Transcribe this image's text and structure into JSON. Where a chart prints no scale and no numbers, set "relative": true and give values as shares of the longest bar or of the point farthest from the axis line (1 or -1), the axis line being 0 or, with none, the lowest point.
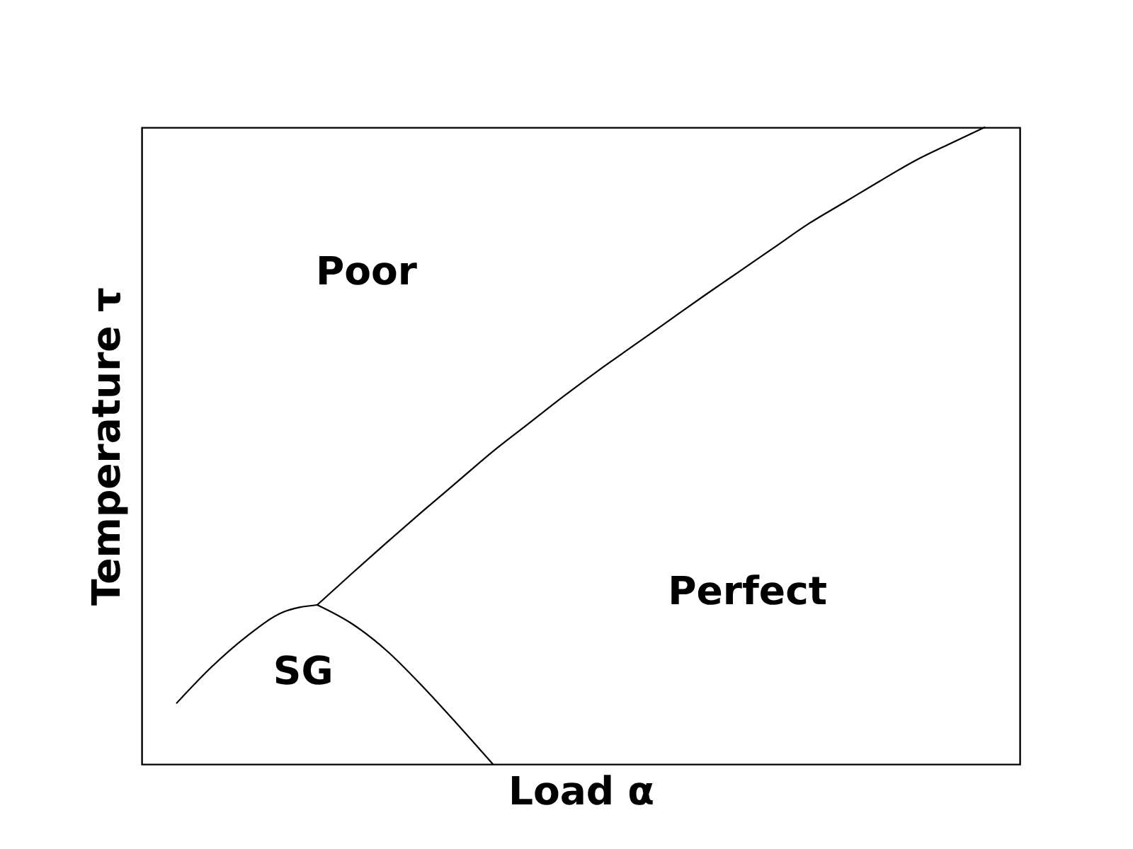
{
  "chart_data": {
    "type": "line",
    "relative": true,
    "xlabel": "Load α",
    "ylabel": "Temperature τ",
    "categories": [
      null,
      null,
      null,
      null,
      null,
      null,
      null,
      null,
      null,
      null,
      null,
      null,
      null,
      null,
      null,
      null,
      null,
      null,
      null,
      null,
      null,
      null,
      null,
      null,
      null,
      null
    ],
    "series": [
      {
        "color": "#000000",
        "values": [
          null,
          0.096,
          0.153,
          0.201,
          0.238,
          0.25,
          null,
          null,
          null,
          null,
          null,
          null,
          null,
          null,
          null,
          null,
          null,
          null,
          null,
          null,
          null,
          null,
          null,
          null,
          null,
          null
        ]
      },
      {
        "color": "#000000",
        "values": [
          null,
          null,
          null,
          null,
          null,
          0.25,
          0.22,
          0.177,
          0.122,
          0.062,
          0,
          null,
          null,
          null,
          null,
          null,
          null,
          null,
          null,
          null,
          null,
          null,
          null,
          null,
          null,
          null
        ]
      },
      {
        "color": "#000000",
        "values": [
          null,
          null,
          null,
          null,
          null,
          0.25,
          0.3,
          0.349,
          0.397,
          0.444,
          0.491,
          0.534,
          0.577,
          0.618,
          0.657,
          0.696,
          0.735,
          0.773,
          0.811,
          0.849,
          0.882,
          0.915,
          0.947,
          0.974,
          1.0,
          null
        ]
      }
    ],
    "annotations": [
      "Poor",
      "Perfect",
      "SG"
    ]
  }
}
